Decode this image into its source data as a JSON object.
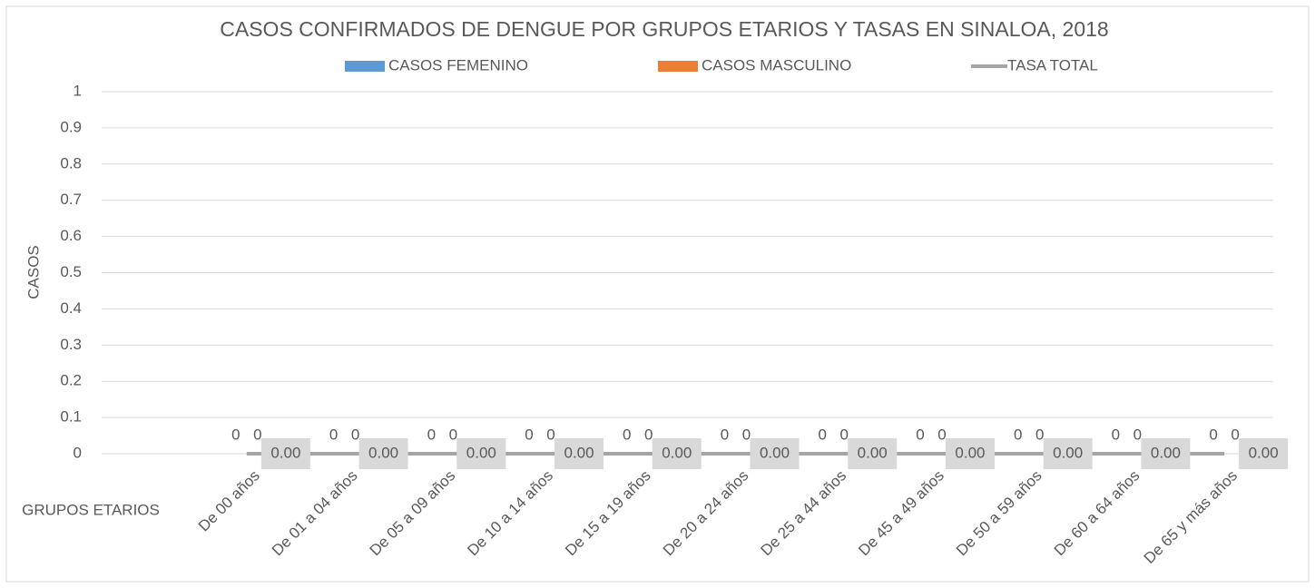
{
  "chart_data": {
    "type": "bar_line",
    "title": "CASOS CONFIRMADOS DE DENGUE POR GRUPOS ETARIOS Y TASAS EN SINALOA, 2018",
    "y_label": "CASOS",
    "x_label": "GRUPOS ETARIOS",
    "categories": [
      "De 00 años",
      "De 01 a 04 años",
      "De 05 a 09 años",
      "De 10 a 14 años",
      "De 15 a 19 años",
      "De 20 a 24 años",
      "De 25 a 44 años",
      "De 45 a 49 años",
      "De 50 a 59 años",
      "De 60 a 64 años",
      "De 65 y más años"
    ],
    "series": [
      {
        "name": "CASOS FEMENINO",
        "type": "bar",
        "color": "#5b9bd5",
        "values": [
          0,
          0,
          0,
          0,
          0,
          0,
          0,
          0,
          0,
          0,
          0
        ]
      },
      {
        "name": "CASOS MASCULINO",
        "type": "bar",
        "color": "#ed7d31",
        "values": [
          0,
          0,
          0,
          0,
          0,
          0,
          0,
          0,
          0,
          0,
          0
        ]
      },
      {
        "name": "TASA TOTAL",
        "type": "line",
        "color": "#a5a5a5",
        "values": [
          0,
          0,
          0,
          0,
          0,
          0,
          0,
          0,
          0,
          0,
          0
        ],
        "value_labels": [
          "0.00",
          "0.00",
          "0.00",
          "0.00",
          "0.00",
          "0.00",
          "0.00",
          "0.00",
          "0.00",
          "0.00",
          "0.00"
        ]
      }
    ],
    "ylim": [
      0,
      1
    ],
    "yticks": [
      0,
      0.1,
      0.2,
      0.3,
      0.4,
      0.5,
      0.6,
      0.7,
      0.8,
      0.9,
      1
    ],
    "grid": true,
    "legend": "top"
  }
}
